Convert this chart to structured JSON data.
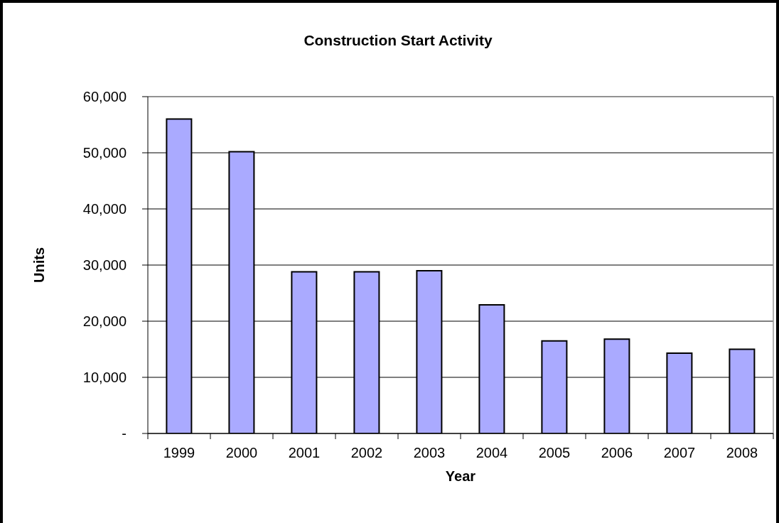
{
  "chart_data": {
    "type": "bar",
    "title": "Construction Start Activity",
    "xlabel": "Year",
    "ylabel": "Units",
    "categories": [
      "1999",
      "2000",
      "2001",
      "2002",
      "2003",
      "2004",
      "2005",
      "2006",
      "2007",
      "2008"
    ],
    "values": [
      56000,
      50200,
      28800,
      28800,
      29000,
      22900,
      16500,
      16800,
      14300,
      15000
    ],
    "color": "#aaaaff",
    "ylim": [
      0,
      60000
    ],
    "yticks": [
      {
        "value": 0,
        "label": "-"
      },
      {
        "value": 10000,
        "label": "10,000"
      },
      {
        "value": 20000,
        "label": "20,000"
      },
      {
        "value": 30000,
        "label": "30,000"
      },
      {
        "value": 40000,
        "label": "40,000"
      },
      {
        "value": 50000,
        "label": "50,000"
      },
      {
        "value": 60000,
        "label": "60,000"
      }
    ],
    "grid": "y"
  }
}
